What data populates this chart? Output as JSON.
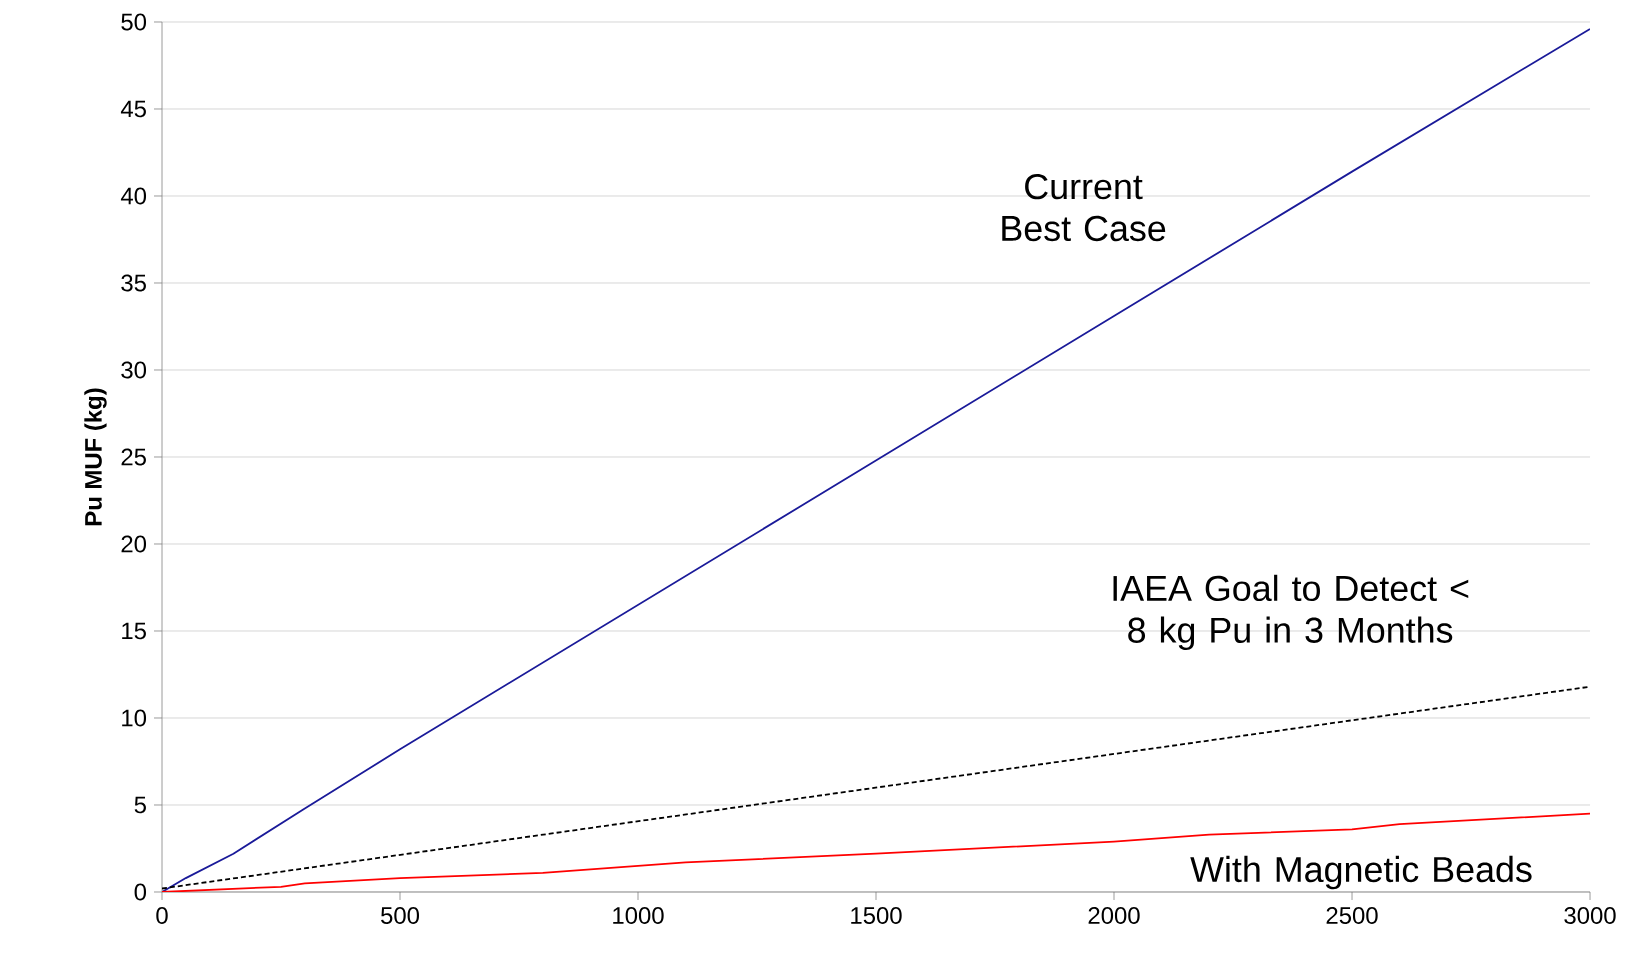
{
  "chart_data": {
    "type": "line",
    "ylabel": "Pu MUF (kg)",
    "xlim": [
      0,
      3000
    ],
    "ylim": [
      0,
      50
    ],
    "xticks": [
      0,
      500,
      1000,
      1500,
      2000,
      2500,
      3000
    ],
    "yticks": [
      0,
      5,
      10,
      15,
      20,
      25,
      30,
      35,
      40,
      45,
      50
    ],
    "grid": "y",
    "marker": "none",
    "series": [
      {
        "name": "Current Best Case",
        "color": "#1a1a99",
        "line_style": "solid",
        "x": [
          0,
          50,
          150,
          300,
          500,
          1000,
          1500,
          2000,
          2500,
          3000
        ],
        "values": [
          0,
          0.8,
          2.2,
          4.8,
          8.2,
          16.5,
          24.8,
          33.1,
          41.4,
          49.6
        ]
      },
      {
        "name": "IAEA Goal to Detect < 8 kg Pu in 3 Months",
        "color": "#000000",
        "line_style": "dashed",
        "x": [
          0,
          3000
        ],
        "values": [
          0.2,
          11.8
        ]
      },
      {
        "name": "With Magnetic Beads",
        "color": "#ff0000",
        "line_style": "solid",
        "x": [
          0,
          250,
          300,
          500,
          800,
          1000,
          1100,
          1500,
          2000,
          2200,
          2500,
          2600,
          3000
        ],
        "values": [
          0,
          0.3,
          0.5,
          0.8,
          1.1,
          1.5,
          1.7,
          2.2,
          2.9,
          3.3,
          3.6,
          3.9,
          4.5
        ]
      }
    ]
  }
}
